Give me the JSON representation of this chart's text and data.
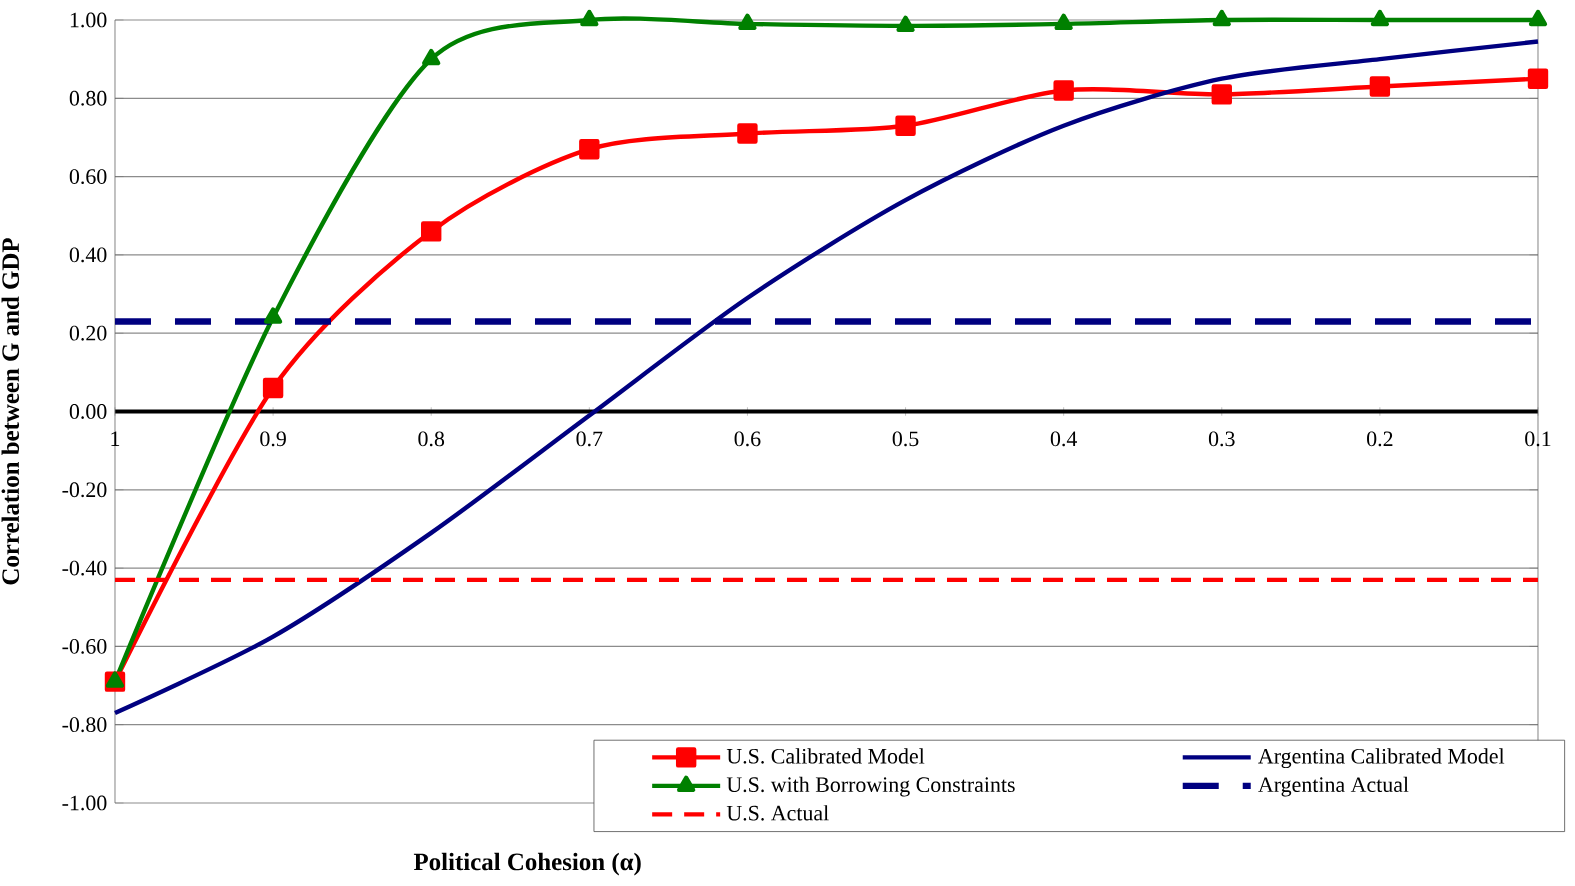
{
  "chart_data": {
    "type": "line",
    "xlabel": "Political Cohesion (α)",
    "ylabel": "Correlation between G and GDP",
    "x": [
      1,
      0.9,
      0.8,
      0.7,
      0.6,
      0.5,
      0.4,
      0.3,
      0.2,
      0.1
    ],
    "series": [
      {
        "name": "U.S. Calibrated Model",
        "color": "#ff0000",
        "marker": "square",
        "line_style": "solid",
        "values": [
          -0.69,
          0.06,
          0.46,
          0.67,
          0.71,
          0.73,
          0.82,
          0.81,
          0.83,
          0.85
        ]
      },
      {
        "name": "Argentina Calibrated Model",
        "color": "#000080",
        "marker": "none",
        "line_style": "solid",
        "values": [
          -0.77,
          -0.575,
          -0.31,
          -0.01,
          0.29,
          0.54,
          0.73,
          0.85,
          0.9,
          0.945
        ]
      },
      {
        "name": "U.S. with Borrowing Constraints",
        "color": "#008000",
        "marker": "triangle",
        "line_style": "solid",
        "values": [
          -0.69,
          0.24,
          0.9,
          1.0,
          0.99,
          0.985,
          0.99,
          1.0,
          1.0,
          1.0
        ]
      }
    ],
    "ref_lines": [
      {
        "axis": "y",
        "value": 0.23,
        "label": "Argentina Actual",
        "color": "#000080",
        "line_style": "dashed"
      },
      {
        "axis": "y",
        "value": -0.43,
        "label": "U.S. Actual",
        "color": "#ff0000",
        "line_style": "dashed"
      }
    ],
    "xlim": [
      1,
      0.1
    ],
    "ylim": [
      -1,
      1
    ],
    "xticks": [
      1,
      0.9,
      0.8,
      0.7,
      0.6,
      0.5,
      0.4,
      0.3,
      0.2,
      0.1
    ],
    "yticks": [
      {
        "value": -1,
        "label": "-1.00"
      },
      {
        "value": -0.8,
        "label": "-0.80"
      },
      {
        "value": -0.6,
        "label": "-0.60"
      },
      {
        "value": -0.4,
        "label": "-0.40"
      },
      {
        "value": -0.2,
        "label": "-0.20"
      },
      {
        "value": 0,
        "label": "0.00"
      },
      {
        "value": 0.2,
        "label": "0.20"
      },
      {
        "value": 0.4,
        "label": "0.40"
      },
      {
        "value": 0.6,
        "label": "0.60"
      },
      {
        "value": 0.8,
        "label": "0.80"
      },
      {
        "value": 1,
        "label": "1.00"
      }
    ],
    "grid": "y",
    "legend": "bottom right"
  }
}
